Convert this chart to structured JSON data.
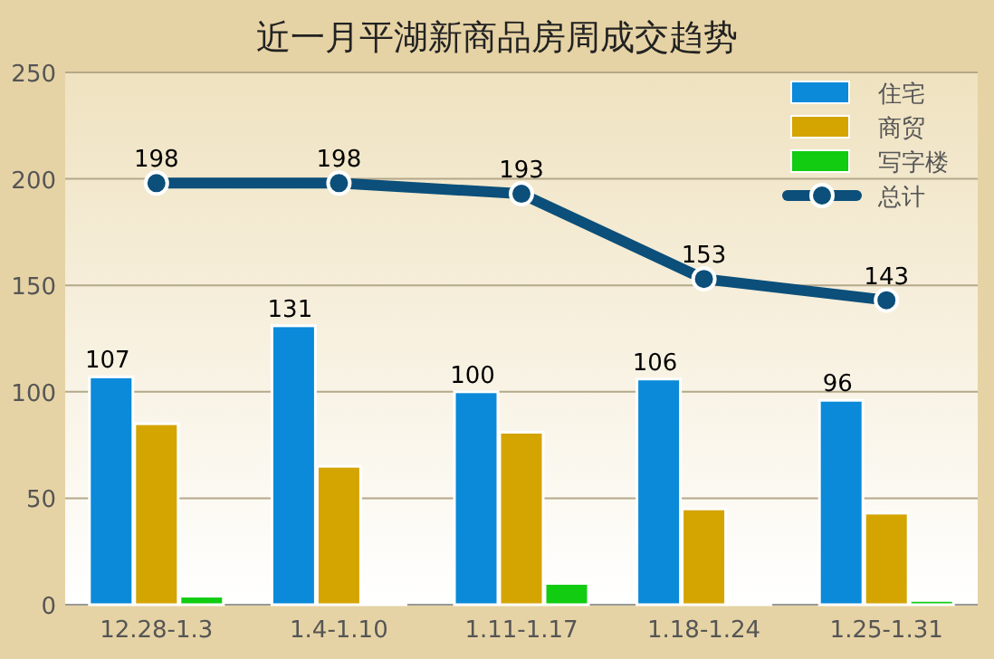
{
  "chart_data": {
    "type": "bar",
    "title": "近一月平湖新商品房周成交趋势",
    "categories": [
      "12.28-1.3",
      "1.4-1.10",
      "1.11-1.17",
      "1.18-1.24",
      "1.25-1.31"
    ],
    "series": [
      {
        "name": "住宅",
        "color": "#0a8ad8",
        "values": [
          107,
          131,
          100,
          106,
          96
        ],
        "value_labels": [
          "107",
          "131",
          "100",
          "106",
          "96"
        ]
      },
      {
        "name": "商贸",
        "color": "#d4a400",
        "values": [
          85,
          65,
          81,
          45,
          43
        ]
      },
      {
        "name": "写字楼",
        "color": "#11cc11",
        "values": [
          4,
          0,
          10,
          0,
          2
        ]
      },
      {
        "name": "总计",
        "type": "line",
        "color": "#0b4f7a",
        "values": [
          198,
          198,
          193,
          153,
          143
        ],
        "value_labels": [
          "198",
          "198",
          "193",
          "153",
          "143"
        ]
      }
    ],
    "ylim": [
      0,
      250
    ],
    "yticks": [
      0,
      50,
      100,
      150,
      200,
      250
    ],
    "grid": "y",
    "legend": "top right",
    "marker": "circle",
    "line_style": "solid"
  }
}
